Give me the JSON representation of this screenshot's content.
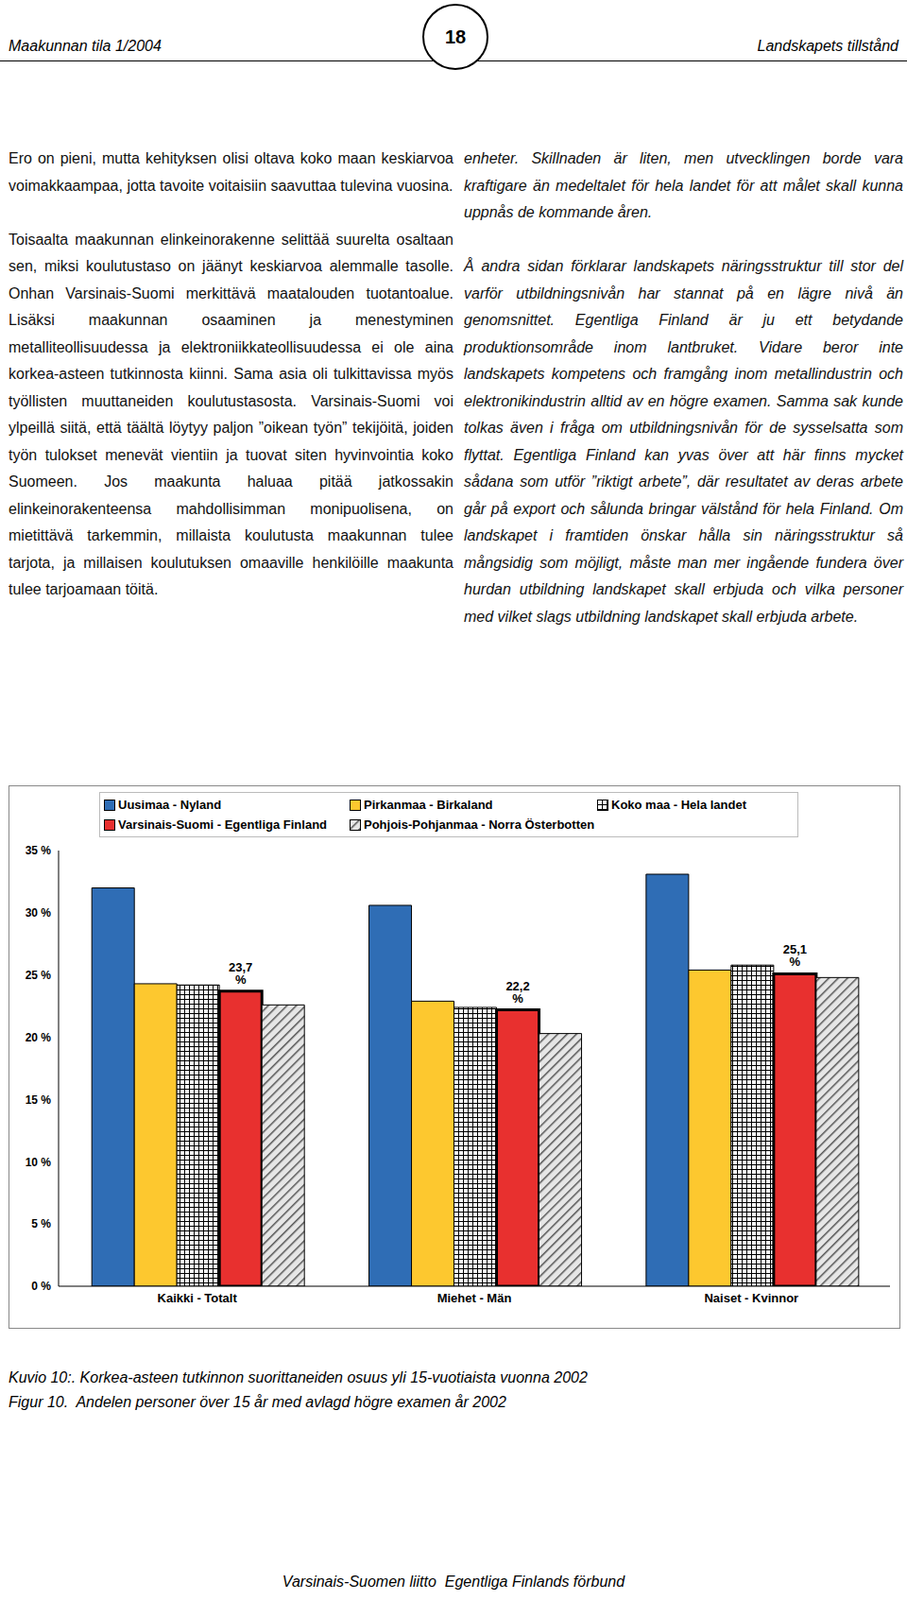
{
  "header": {
    "left": "Maakunnan tila 1/2004",
    "page": "18",
    "right": "Landskapets tillstånd"
  },
  "columns": {
    "left": [
      "Ero on pieni, mutta kehityksen olisi oltava koko maan keskiarvoa voimakkaampaa, jotta tavoite voitaisiin saavuttaa tulevina vuosina.",
      "Toisaalta maakunnan elinkeinorakenne selittää suurelta osaltaan sen, miksi koulutustaso on jäänyt keskiarvoa alemmalle tasolle. Onhan Varsinais-Suomi merkittävä maatalouden tuotantoalue. Lisäksi maakunnan osaaminen ja menestyminen metalliteollisuudessa ja elektroniikkateollisuudessa ei ole aina korkea-asteen tutkinnosta kiinni. Sama asia oli tulkittavissa myös työllisten muuttaneiden koulutustasosta. Varsinais-Suomi voi ylpeillä siitä, että täältä löytyy paljon ”oikean työn” tekijöitä, joiden työn tulokset menevät vientiin ja tuovat siten hyvinvointia koko Suomeen. Jos maakunta haluaa pitää jatkossakin elinkeinorakenteensa mahdollisimman monipuolisena, on mietittävä tarkemmin, millaista koulutusta maakunnan tulee tarjota, ja millaisen koulutuksen omaaville henkilöille maakunta tulee tarjoamaan töitä."
    ],
    "right": [
      "enheter. Skillnaden är liten, men utvecklingen borde vara kraftigare än medeltalet för hela landet för att målet skall kunna uppnås de kommande åren.",
      "Å andra sidan förklarar landskapets näringsstruktur till stor del varför utbildningsnivån har stannat på en lägre nivå än genomsnittet. Egentliga Finland är ju ett betydande produktionsområde inom lantbruket. Vidare beror inte landskapets kompetens och framgång inom metallindustrin och elektronikindustrin alltid av en högre examen. Samma sak kunde tolkas även i fråga om utbildningsnivån för de sysselsatta som flyttat. Egentliga Finland kan yvas över att här finns mycket sådana som utför ”riktigt arbete”, där resultatet av deras arbete går på export och sålunda bringar välstånd för hela Finland. Om landskapet i framtiden önskar hålla sin näringsstruktur så mångsidig som möjligt, måste man mer ingående fundera över hurdan utbildning landskapet skall erbjuda och vilka personer med vilket slags utbildning landskapet skall erbjuda arbete."
    ]
  },
  "chart_data": {
    "type": "bar",
    "categories": [
      "Kaikki - Totalt",
      "Miehet - Män",
      "Naiset - Kvinnor"
    ],
    "series": [
      {
        "name": "Uusimaa - Nyland",
        "color": "#2f6db5",
        "values": [
          32.0,
          30.6,
          33.1
        ]
      },
      {
        "name": "Pirkanmaa - Birkaland",
        "color": "#fdc82f",
        "values": [
          24.3,
          22.9,
          25.4
        ]
      },
      {
        "name": "Koko maa - Hela landet",
        "color": "#ffffff",
        "values": [
          24.2,
          22.4,
          25.8
        ]
      },
      {
        "name": "Varsinais-Suomi - Egentliga Finland",
        "color": "#e8302f",
        "values": [
          23.7,
          22.2,
          25.1
        ],
        "data_labels": true,
        "value_labels": [
          "23,7 %",
          "22,2 %",
          "25,1 %"
        ]
      },
      {
        "name": "Pohjois-Pohjanmaa - Norra Österbotten",
        "color": "#e6e6e6",
        "values": [
          22.6,
          20.3,
          24.8
        ]
      }
    ],
    "ylim": [
      0,
      35
    ],
    "yticks": [
      {
        "value": 0,
        "label": "0 %"
      },
      {
        "value": 5,
        "label": "5 %"
      },
      {
        "value": 10,
        "label": "10 %"
      },
      {
        "value": 15,
        "label": "15 %"
      },
      {
        "value": 20,
        "label": "20 %"
      },
      {
        "value": 25,
        "label": "25 %"
      },
      {
        "value": 30,
        "label": "30 %"
      },
      {
        "value": 35,
        "label": "35 %"
      }
    ],
    "grid": false,
    "legend": "top"
  },
  "caption": [
    "Kuvio 10:. Korkea-asteen tutkinnon suorittaneiden osuus yli 15-vuotiaista vuonna 2002",
    "Figur 10.  Andelen personer över 15 år med avlagd högre examen år 2002"
  ],
  "footer": "Varsinais-Suomen liitto  Egentliga Finlands förbund"
}
